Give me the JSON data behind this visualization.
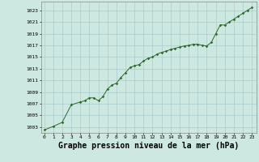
{
  "x_values": [
    0,
    1,
    2,
    3,
    4,
    4.5,
    5,
    5.5,
    6,
    6.5,
    7,
    7.5,
    8,
    8.5,
    9,
    9.5,
    10,
    10.5,
    11,
    11.5,
    12,
    12.5,
    13,
    13.5,
    14,
    14.5,
    15,
    15.5,
    16,
    16.5,
    17,
    17.5,
    18,
    18.5,
    19,
    19.5,
    20,
    20.5,
    21,
    21.5,
    22,
    22.5,
    23
  ],
  "y_values": [
    1002.5,
    1003.1,
    1003.8,
    1006.8,
    1007.3,
    1007.5,
    1008.0,
    1008.0,
    1007.5,
    1008.2,
    1009.5,
    1010.2,
    1010.5,
    1011.5,
    1012.3,
    1013.2,
    1013.5,
    1013.7,
    1014.3,
    1014.8,
    1015.0,
    1015.5,
    1015.8,
    1016.0,
    1016.3,
    1016.5,
    1016.7,
    1016.9,
    1017.0,
    1017.2,
    1017.2,
    1017.0,
    1016.9,
    1017.5,
    1019.0,
    1020.5,
    1020.5,
    1021.0,
    1021.5,
    1022.0,
    1022.5,
    1023.0,
    1023.5
  ],
  "line_color": "#2d6a2d",
  "marker_color": "#2d6a2d",
  "bg_color": "#cce8e0",
  "grid_color": "#aacccc",
  "xlabel": "Graphe pression niveau de la mer (hPa)",
  "xlabel_fontsize": 7,
  "xtick_labels": [
    "0",
    "1",
    "2",
    "3",
    "4",
    "5",
    "6",
    "7",
    "8",
    "9",
    "10",
    "11",
    "12",
    "13",
    "14",
    "15",
    "16",
    "17",
    "18",
    "19",
    "20",
    "21",
    "22",
    "23"
  ],
  "ytick_min": 1003,
  "ytick_max": 1023,
  "ytick_step": 2,
  "ylim_min": 1002.0,
  "ylim_max": 1024.5,
  "xlim_min": -0.3,
  "xlim_max": 23.5
}
